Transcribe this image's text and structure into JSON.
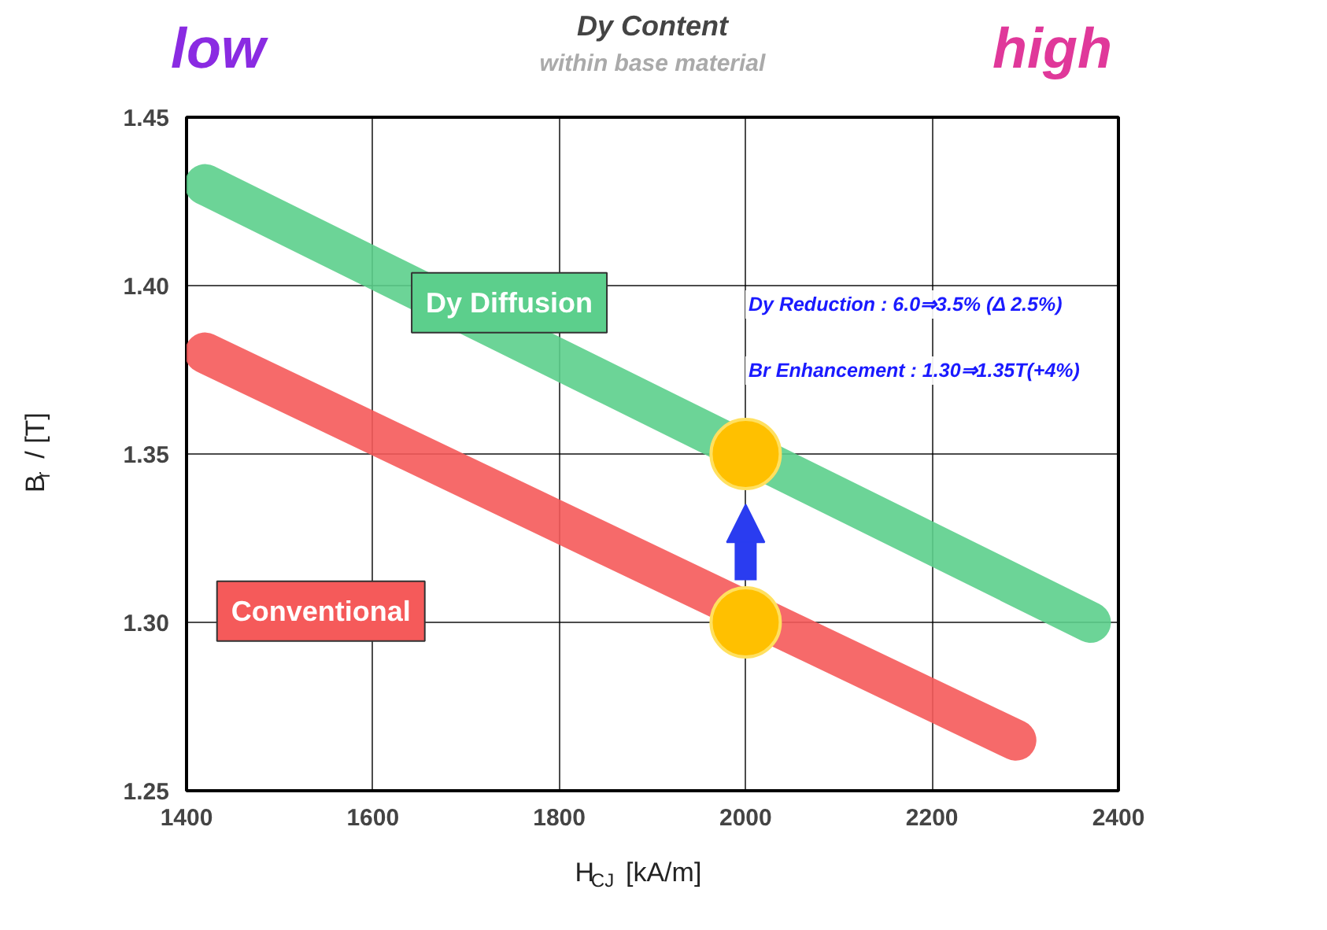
{
  "chart_data": {
    "type": "line",
    "title": "Dy Content",
    "subtitle": "within base material",
    "xlabel": "H$_{CJ}$ [kA/m]",
    "ylabel": "B$_{r}$ / [T]",
    "annotations": [
      "low",
      "high",
      "Dy Reduction : 6.0⇒3.5% (Δ 2.5%)",
      "Br Enhancement : 1.30⇒1.35T(+4%)"
    ],
    "series": [
      {
        "name": "Dy Diffusion",
        "color": "#5ccf8c",
        "x": [
          1420,
          2370
        ],
        "values": [
          1.43,
          1.3
        ]
      },
      {
        "name": "Conventional",
        "color": "#f55a5a",
        "x": [
          1420,
          2290
        ],
        "values": [
          1.38,
          1.265
        ]
      },
      {
        "type": "scatter",
        "color": "#ffc000",
        "marker": "circle",
        "x": [
          2000,
          2000
        ],
        "values": [
          1.3,
          1.35
        ]
      }
    ],
    "xlim": [
      1400,
      2400
    ],
    "ylim": [
      1.25,
      1.45
    ],
    "xticks": [
      1400,
      1600,
      1800,
      2000,
      2200,
      2400
    ],
    "yticks": [
      {
        "value": 1.25,
        "label": "1.25"
      },
      {
        "value": 1.3,
        "label": "1.30"
      },
      {
        "value": 1.35,
        "label": "1.35"
      },
      {
        "value": 1.4,
        "label": "1.40"
      },
      {
        "value": 1.45,
        "label": "1.45"
      }
    ],
    "grid": true,
    "legend": false
  }
}
